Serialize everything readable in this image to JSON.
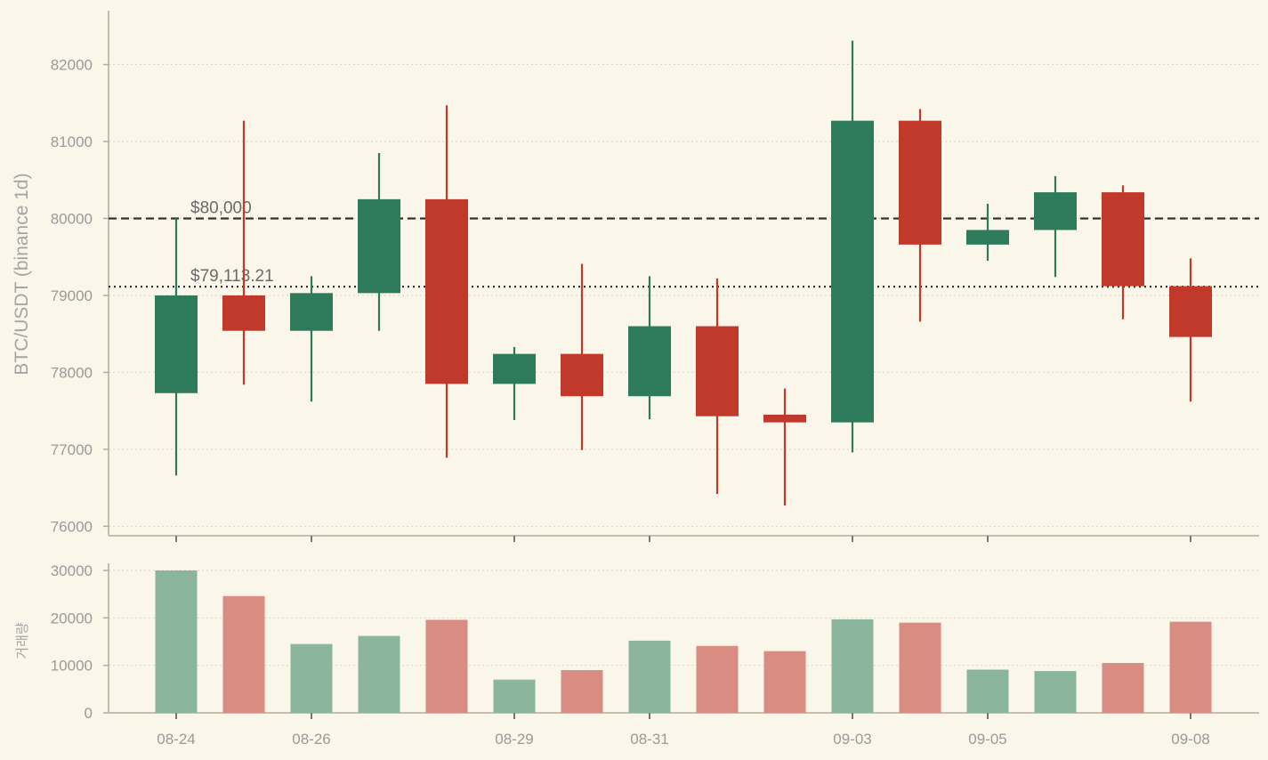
{
  "chart_data": {
    "type": "candlestick",
    "ylabel": "BTC/USDT (binance 1d)",
    "volume_label": "거래량",
    "price_ticks": [
      76000,
      77000,
      78000,
      79000,
      80000,
      81000,
      82000
    ],
    "price_ylim": [
      75900,
      82700
    ],
    "volume_ticks": [
      0,
      10000,
      20000,
      30000
    ],
    "volume_ylim": [
      0,
      31500
    ],
    "x_tick_labels": [
      {
        "index": 0,
        "label": "08-24"
      },
      {
        "index": 2,
        "label": "08-26"
      },
      {
        "index": 5,
        "label": "08-29"
      },
      {
        "index": 7,
        "label": "08-31"
      },
      {
        "index": 10,
        "label": "09-03"
      },
      {
        "index": 12,
        "label": "09-05"
      },
      {
        "index": 15,
        "label": "09-08"
      }
    ],
    "reference_lines": [
      {
        "value": 80000,
        "label": "$80,000",
        "style": "dashed"
      },
      {
        "value": 79113.21,
        "label": "$79,113.21",
        "style": "dotted"
      }
    ],
    "colors": {
      "up": "#2e7b5c",
      "down": "#c0392b",
      "up_volume": "#8bb59c",
      "down_volume": "#d98d82",
      "background": "#fbf6ea"
    },
    "candles": [
      {
        "date": "08-24",
        "open": 77730,
        "high": 80000,
        "low": 76660,
        "close": 79000,
        "volume": 30000
      },
      {
        "date": "08-25",
        "open": 79000,
        "high": 81270,
        "low": 77840,
        "close": 78540,
        "volume": 24600
      },
      {
        "date": "08-26",
        "open": 78540,
        "high": 79250,
        "low": 77620,
        "close": 79030,
        "volume": 14500
      },
      {
        "date": "08-27",
        "open": 79030,
        "high": 80850,
        "low": 78540,
        "close": 80250,
        "volume": 16200
      },
      {
        "date": "08-28",
        "open": 80250,
        "high": 81470,
        "low": 76890,
        "close": 77850,
        "volume": 19600
      },
      {
        "date": "08-29",
        "open": 77850,
        "high": 78330,
        "low": 77380,
        "close": 78240,
        "volume": 7000
      },
      {
        "date": "08-30",
        "open": 78240,
        "high": 79410,
        "low": 76990,
        "close": 77690,
        "volume": 9000
      },
      {
        "date": "08-31",
        "open": 77690,
        "high": 79250,
        "low": 77390,
        "close": 78600,
        "volume": 15200
      },
      {
        "date": "09-01",
        "open": 78600,
        "high": 79220,
        "low": 76420,
        "close": 77430,
        "volume": 14100
      },
      {
        "date": "09-02",
        "open": 77450,
        "high": 77790,
        "low": 76270,
        "close": 77350,
        "volume": 13000
      },
      {
        "date": "09-03",
        "open": 77350,
        "high": 82310,
        "low": 76960,
        "close": 81270,
        "volume": 19700
      },
      {
        "date": "09-04",
        "open": 81270,
        "high": 81420,
        "low": 78660,
        "close": 79660,
        "volume": 19000
      },
      {
        "date": "09-05",
        "open": 79660,
        "high": 80190,
        "low": 79450,
        "close": 79850,
        "volume": 9100
      },
      {
        "date": "09-06",
        "open": 79850,
        "high": 80550,
        "low": 79240,
        "close": 80340,
        "volume": 8800
      },
      {
        "date": "09-07",
        "open": 80340,
        "high": 80430,
        "low": 78690,
        "close": 79120,
        "volume": 10500
      },
      {
        "date": "09-08",
        "open": 79120,
        "high": 79480,
        "low": 77620,
        "close": 78460,
        "volume": 19200
      }
    ]
  }
}
